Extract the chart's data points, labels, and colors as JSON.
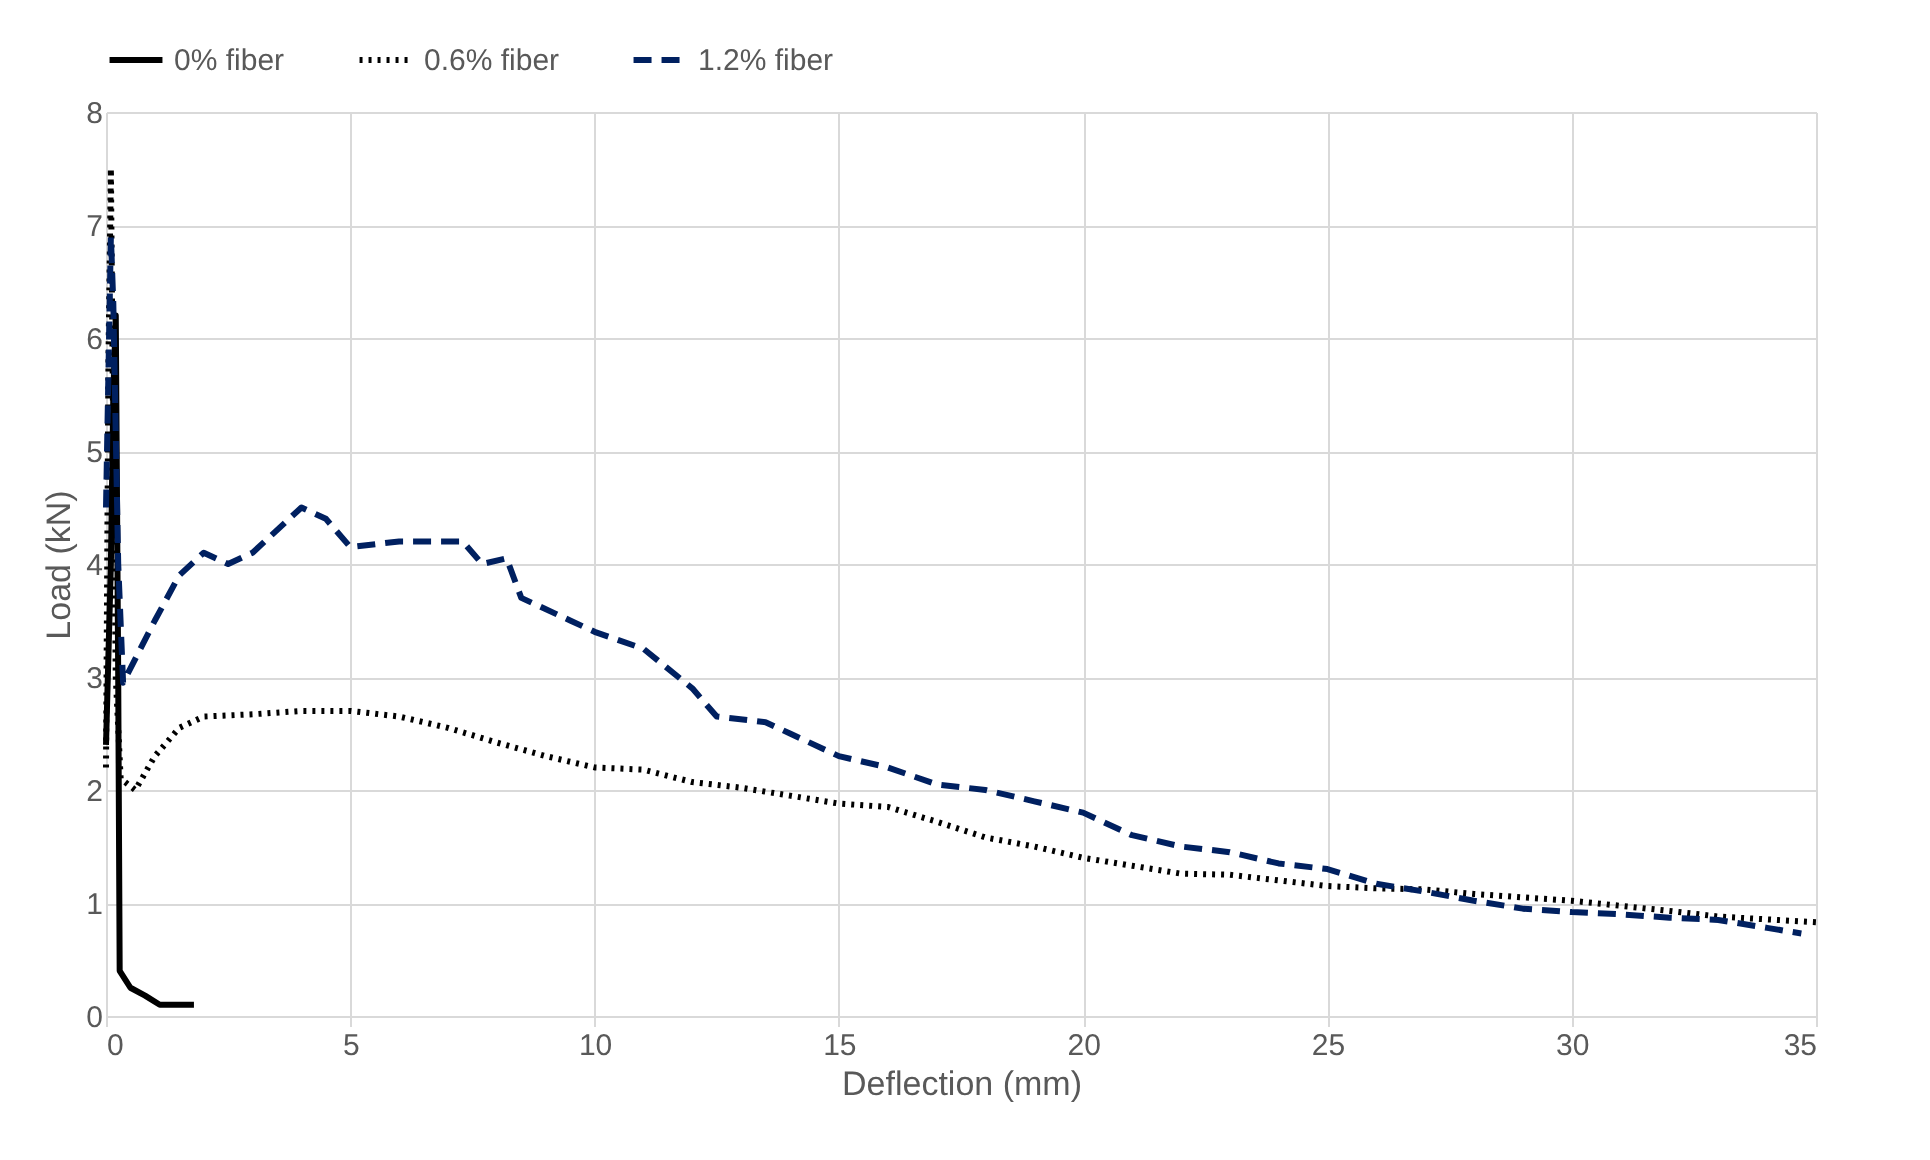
{
  "chart_data": {
    "type": "line",
    "xlabel": "Deflection (mm)",
    "ylabel": "Load (kN)",
    "xlim": [
      0,
      35
    ],
    "xticks": [
      0,
      5,
      10,
      15,
      20,
      25,
      30,
      35
    ],
    "ylim": [
      0,
      8
    ],
    "yticks": [
      0,
      1,
      2,
      3,
      4,
      5,
      6,
      7,
      8
    ],
    "grid": true,
    "legend": "top",
    "marker": "none",
    "series": [
      {
        "name": "0% fiber",
        "color": "#000000",
        "line_style": "solid",
        "x": [
          0,
          0.1,
          0.15,
          0.2,
          0.25,
          0.28,
          0.5,
          0.8,
          1.1,
          1.8
        ],
        "values": [
          2.4,
          4,
          5.5,
          6.2,
          3,
          0.4,
          0.25,
          0.18,
          0.1,
          0.1
        ]
      },
      {
        "name": "0.6% fiber",
        "color": "#000000",
        "line_style": "dotted",
        "x": [
          0,
          0.05,
          0.1,
          0.15,
          0.2,
          0.3,
          0.6,
          1,
          1.5,
          2,
          3,
          4,
          5,
          6,
          7,
          8,
          9,
          10,
          11,
          12,
          13,
          14,
          15,
          16,
          17,
          18,
          19,
          20,
          21,
          22,
          23,
          24,
          25,
          26,
          27,
          28,
          30,
          32,
          33,
          35
        ],
        "values": [
          2.2,
          5.8,
          7.5,
          5,
          3,
          2.1,
          2.0,
          2.3,
          2.55,
          2.65,
          2.67,
          2.7,
          2.7,
          2.65,
          2.55,
          2.42,
          2.3,
          2.2,
          2.18,
          2.07,
          2.02,
          1.95,
          1.88,
          1.85,
          1.72,
          1.58,
          1.5,
          1.4,
          1.33,
          1.26,
          1.25,
          1.2,
          1.15,
          1.13,
          1.12,
          1.08,
          1.02,
          0.93,
          0.88,
          0.83
        ]
      },
      {
        "name": "1.2% fiber",
        "color": "#002060",
        "line_style": "dashed",
        "x": [
          0,
          0.1,
          0.15,
          0.25,
          0.35,
          1,
          1.5,
          2,
          2.5,
          3,
          4,
          4.5,
          5,
          6,
          7.3,
          7.7,
          8.2,
          8.5,
          9.5,
          10,
          11,
          12,
          12.5,
          13.5,
          14,
          15,
          16,
          17,
          18,
          19,
          20,
          21,
          22,
          23,
          24,
          25,
          26,
          27,
          28,
          29,
          30,
          31,
          32,
          33,
          34,
          34.7
        ],
        "values": [
          4.5,
          6.9,
          6.3,
          4,
          2.95,
          3.5,
          3.9,
          4.1,
          4.0,
          4.1,
          4.5,
          4.4,
          4.15,
          4.2,
          4.2,
          4.0,
          4.05,
          3.7,
          3.5,
          3.4,
          3.25,
          2.9,
          2.65,
          2.6,
          2.5,
          2.3,
          2.2,
          2.05,
          2.0,
          1.9,
          1.8,
          1.6,
          1.5,
          1.45,
          1.35,
          1.3,
          1.17,
          1.1,
          1.02,
          0.95,
          0.92,
          0.9,
          0.87,
          0.85,
          0.78,
          0.73
        ]
      }
    ]
  }
}
